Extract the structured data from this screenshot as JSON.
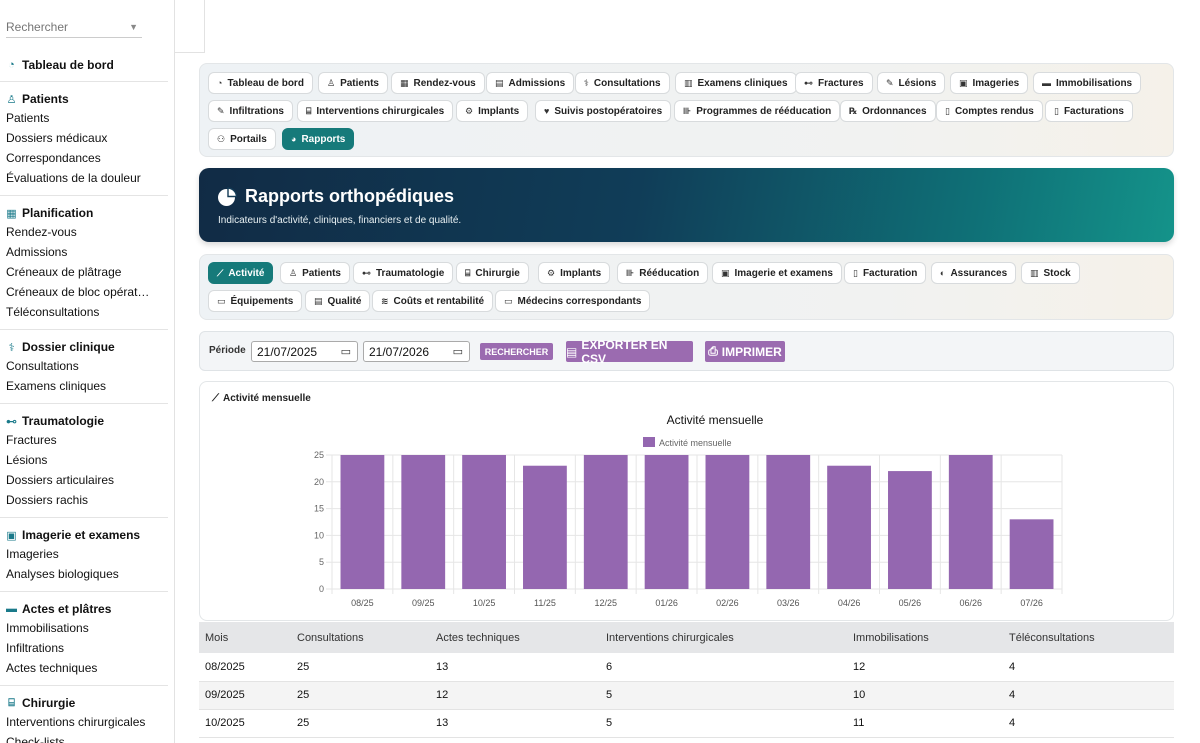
{
  "search": {
    "placeholder": "Rechercher"
  },
  "sidebar": {
    "dashboard": "Tableau de bord",
    "groups": [
      {
        "title": "Patients",
        "items": [
          "Patients",
          "Dossiers médicaux",
          "Correspondances",
          "Évaluations de la douleur"
        ]
      },
      {
        "title": "Planification",
        "items": [
          "Rendez-vous",
          "Admissions",
          "Créneaux de plâtrage",
          "Créneaux de bloc opérat…",
          "Téléconsultations"
        ]
      },
      {
        "title": "Dossier clinique",
        "items": [
          "Consultations",
          "Examens cliniques"
        ]
      },
      {
        "title": "Traumatologie",
        "items": [
          "Fractures",
          "Lésions",
          "Dossiers articulaires",
          "Dossiers rachis"
        ]
      },
      {
        "title": "Imagerie et examens",
        "items": [
          "Imageries",
          "Analyses biologiques"
        ]
      },
      {
        "title": "Actes et plâtres",
        "items": [
          "Immobilisations",
          "Infiltrations",
          "Actes techniques"
        ]
      },
      {
        "title": "Chirurgie",
        "items": [
          "Interventions chirurgicales",
          "Check-lists"
        ]
      }
    ]
  },
  "nav": {
    "tabs": [
      "Tableau de bord",
      "Patients",
      "Rendez-vous",
      "Admissions",
      "Consultations",
      "Examens cliniques",
      "Fractures",
      "Lésions",
      "Imageries",
      "Immobilisations",
      "Infiltrations",
      "Interventions chirurgicales",
      "Implants",
      "Suivis postopératoires",
      "Programmes de rééducation",
      "Ordonnances",
      "Comptes rendus",
      "Facturations",
      "Portails",
      "Rapports"
    ],
    "active": "Rapports"
  },
  "hero": {
    "title": "Rapports orthopédiques",
    "subtitle": "Indicateurs d'activité, cliniques, financiers et de qualité."
  },
  "report_tabs": {
    "tabs": [
      "Activité",
      "Patients",
      "Traumatologie",
      "Chirurgie",
      "Implants",
      "Rééducation",
      "Imagerie et examens",
      "Facturation",
      "Assurances",
      "Stock",
      "Équipements",
      "Qualité",
      "Coûts et rentabilité",
      "Médecins correspondants"
    ],
    "active": "Activité"
  },
  "filters": {
    "period_label": "Période",
    "date_from": "21/07/2025",
    "date_to": "21/07/2026",
    "search_button": "RECHERCHER",
    "export_button": "EXPORTER EN CSV",
    "print_button": "IMPRIMER"
  },
  "card": {
    "title": "Activité mensuelle"
  },
  "chart_data": {
    "type": "bar",
    "title": "Activité mensuelle",
    "categories": [
      "08/25",
      "09/25",
      "10/25",
      "11/25",
      "12/25",
      "01/26",
      "02/26",
      "03/26",
      "04/26",
      "05/26",
      "06/26",
      "07/26"
    ],
    "series": [
      {
        "name": "Activité mensuelle",
        "values": [
          25,
          25,
          25,
          23,
          25,
          25,
          25,
          25,
          23,
          22,
          25,
          13
        ]
      }
    ],
    "ylim": [
      0,
      25
    ],
    "yticks": [
      0,
      5,
      10,
      15,
      20,
      25
    ],
    "grid": true,
    "legend": "top",
    "color": "#9467b0"
  },
  "table": {
    "headers": [
      "Mois",
      "Consultations",
      "Actes techniques",
      "Interventions chirurgicales",
      "Immobilisations",
      "Téléconsultations"
    ],
    "rows": [
      [
        "08/2025",
        "25",
        "13",
        "6",
        "12",
        "4"
      ],
      [
        "09/2025",
        "25",
        "12",
        "5",
        "10",
        "4"
      ],
      [
        "10/2025",
        "25",
        "13",
        "5",
        "11",
        "4"
      ]
    ]
  },
  "colors": {
    "accent": "#167a7a",
    "button": "#9b6bb0",
    "bar": "#9467b0"
  }
}
